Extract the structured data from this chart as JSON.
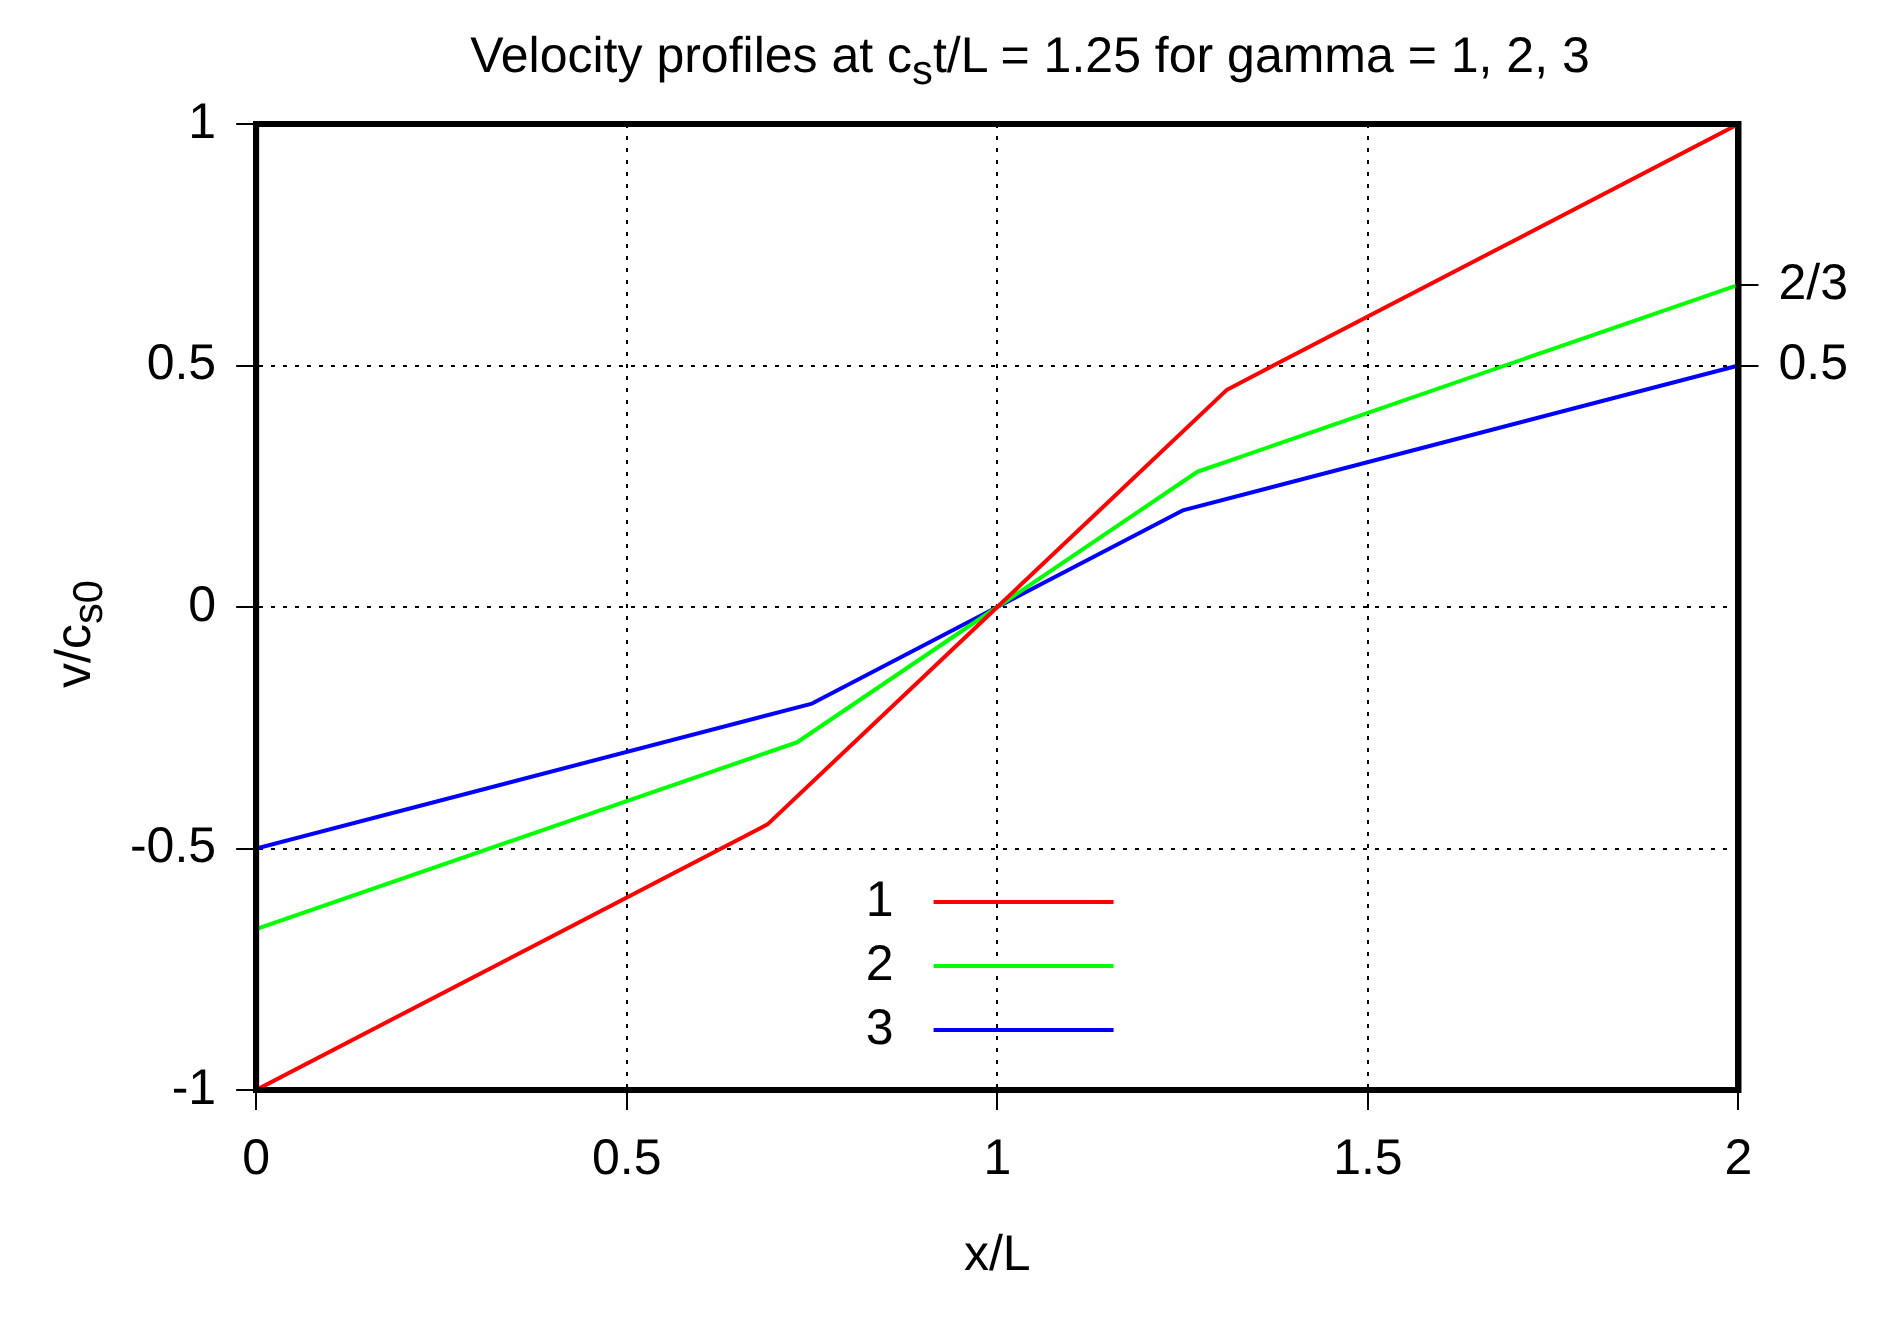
{
  "chart_data": {
    "type": "line",
    "title": "Velocity profiles at c$_{s}$t/L = 1.25 for gamma = 1, 2, 3",
    "xlabel": "x/L",
    "ylabel": "v/c$_{s0}$",
    "series": [
      {
        "name": "1",
        "color": "#ff0000",
        "x": [
          0,
          0.69,
          1,
          1.31,
          2
        ],
        "values": [
          -1,
          -0.45,
          0,
          0.45,
          1
        ]
      },
      {
        "name": "2",
        "color": "#00ff00",
        "x": [
          0,
          0.73,
          1,
          1.27,
          2
        ],
        "values": [
          -0.667,
          -0.28,
          0,
          0.28,
          0.667
        ]
      },
      {
        "name": "3",
        "color": "#0000ff",
        "x": [
          0,
          0.75,
          1,
          1.25,
          2
        ],
        "values": [
          -0.5,
          -0.2,
          0,
          0.2,
          0.5
        ]
      }
    ],
    "xlim": [
      0,
      2
    ],
    "xticks": [
      0,
      0.5,
      1,
      1.5,
      2
    ],
    "ylim": [
      -1,
      1
    ],
    "yticks": [
      -1,
      -0.5,
      0,
      0.5,
      1
    ],
    "y2lim": [
      -1,
      1
    ],
    "y2ticks": [
      {
        "value": 0.6667,
        "label": "2/3"
      },
      0.5
    ],
    "grid": true,
    "legend": "bottom",
    "marker": "none",
    "line_style": "solid"
  }
}
